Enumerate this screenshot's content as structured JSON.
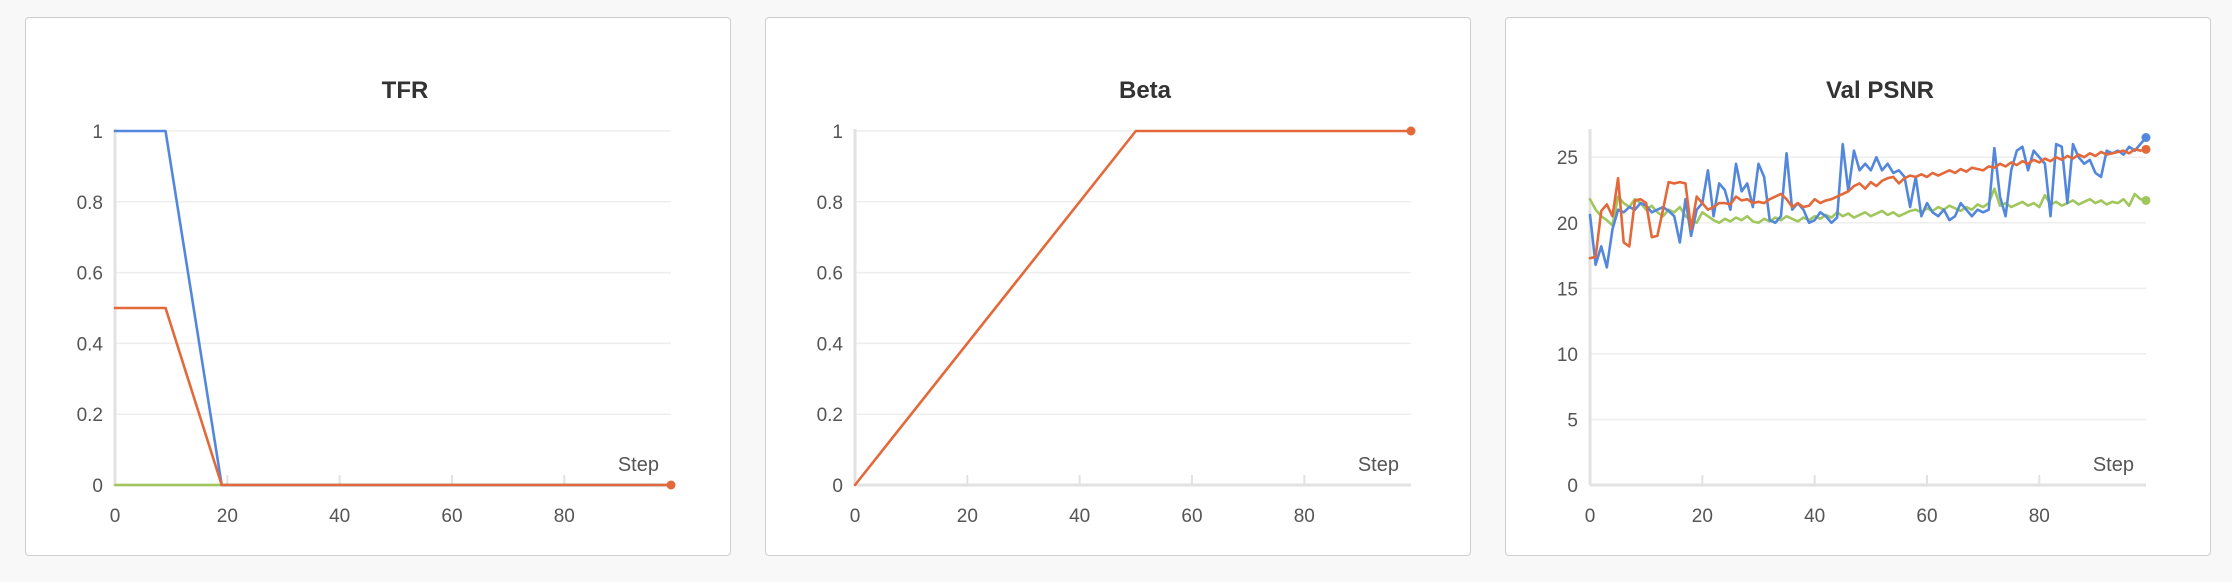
{
  "chart_data": [
    {
      "type": "line",
      "title": "TFR",
      "xlabel": "Step",
      "ylabel": "",
      "xlim": [
        0,
        99
      ],
      "ylim": [
        0,
        1
      ],
      "xticks": [
        "0",
        "20",
        "40",
        "60",
        "80"
      ],
      "yticks": [
        "0",
        "0.2",
        "0.4",
        "0.6",
        "0.8",
        "1"
      ],
      "grid": true,
      "series": [
        {
          "color": "#a0c75c",
          "x": [
            0,
            99
          ],
          "y": [
            0,
            0
          ]
        },
        {
          "color": "#5387dd",
          "x": [
            0,
            9,
            19,
            99
          ],
          "y": [
            1,
            1,
            0,
            0
          ]
        },
        {
          "color": "#e4693a",
          "x": [
            0,
            9,
            19,
            99
          ],
          "y": [
            0.5,
            0.5,
            0,
            0
          ],
          "end_marker": true
        }
      ]
    },
    {
      "type": "line",
      "title": "Beta",
      "xlabel": "Step",
      "ylabel": "",
      "xlim": [
        0,
        99
      ],
      "ylim": [
        0,
        1
      ],
      "xticks": [
        "0",
        "20",
        "40",
        "60",
        "80"
      ],
      "yticks": [
        "0",
        "0.2",
        "0.4",
        "0.6",
        "0.8",
        "1"
      ],
      "grid": true,
      "series": [
        {
          "color": "#e4693a",
          "x": [
            0,
            50,
            99
          ],
          "y": [
            0,
            1,
            1
          ],
          "end_marker": true
        }
      ]
    },
    {
      "type": "line",
      "title": "Val PSNR",
      "xlabel": "Step",
      "ylabel": "",
      "xlim": [
        0,
        99
      ],
      "ylim": [
        0,
        27
      ],
      "xticks": [
        "0",
        "20",
        "40",
        "60",
        "80"
      ],
      "yticks": [
        "0",
        "5",
        "10",
        "15",
        "20",
        "25"
      ],
      "grid": true,
      "series": [
        {
          "color": "#a0c75c",
          "end_marker": true,
          "y": [
            21.8,
            21,
            20.5,
            20.2,
            19.8,
            22,
            21.5,
            21.2,
            21.8,
            21.5,
            21,
            21.3,
            20.8,
            20.5,
            21,
            20.8,
            21.2,
            20.5,
            20.2,
            20,
            20.8,
            20.5,
            20.2,
            20,
            20.3,
            20.1,
            20.4,
            20.2,
            20.5,
            20.1,
            20,
            20.3,
            20.1,
            20.4,
            20.2,
            20.5,
            20.3,
            20.1,
            20.4,
            20.2,
            20.5,
            20.3,
            20.6,
            20.4,
            20.8,
            20.5,
            20.7,
            20.4,
            20.6,
            20.8,
            20.5,
            20.7,
            20.9,
            20.6,
            20.8,
            20.5,
            20.7,
            20.9,
            21,
            20.8,
            21.1,
            20.9,
            21.2,
            21,
            21.3,
            21.1,
            20.9,
            21.2,
            21,
            21.4,
            21.2,
            21.5,
            22.6,
            21.3,
            21.5,
            21.2,
            21.4,
            21.6,
            21.3,
            21.5,
            21.2,
            22.1,
            21.4,
            21.6,
            21.3,
            21.5,
            21.7,
            21.4,
            21.6,
            21.8,
            21.5,
            21.7,
            21.4,
            21.6,
            21.5,
            21.8,
            21.3,
            22.2,
            21.8,
            21.7
          ]
        },
        {
          "color": "#5387dd",
          "end_marker": true,
          "y": [
            20.6,
            16.8,
            18.2,
            16.6,
            19.5,
            21,
            20.8,
            21.2,
            21,
            21.5,
            21.3,
            20.8,
            21,
            21.2,
            20.9,
            20.5,
            18.5,
            21.8,
            19,
            21,
            21.5,
            24,
            20.5,
            23,
            22.5,
            21,
            24.5,
            22.4,
            23,
            21.2,
            24.5,
            23.5,
            20.2,
            20,
            20.5,
            25.3,
            21,
            21.5,
            21,
            20,
            20.2,
            20.8,
            20.5,
            20,
            20.4,
            26,
            22.4,
            25.5,
            24,
            24.5,
            24,
            25,
            24,
            24.5,
            23.8,
            24,
            23.5,
            21.2,
            23.5,
            20.5,
            21.5,
            20.8,
            20.5,
            21,
            20.2,
            20.5,
            21.5,
            21,
            20.5,
            21,
            20.8,
            21,
            25.7,
            22,
            20.5,
            24,
            25.5,
            25.8,
            24,
            25.5,
            25,
            24.5,
            20.5,
            26,
            25.8,
            21.5,
            26,
            25,
            24.5,
            24.8,
            23.8,
            23.5,
            25.5,
            25.3,
            25.5,
            25.2,
            25.8,
            25.5,
            26,
            26.5
          ]
        },
        {
          "color": "#e4693a",
          "end_marker": true,
          "y": [
            17.3,
            17.4,
            20.9,
            21.4,
            20.5,
            23.4,
            18.5,
            18.2,
            21.7,
            21.8,
            21.5,
            18.9,
            19,
            21,
            23.1,
            23,
            23.1,
            23,
            19.5,
            22,
            21.5,
            21,
            21.2,
            21.5,
            21.5,
            21.4,
            22,
            21.7,
            21.8,
            21.5,
            21.6,
            21.5,
            21.8,
            22,
            22.2,
            21.8,
            21.2,
            21.5,
            21.2,
            21.3,
            21.8,
            21.5,
            21.7,
            21.8,
            22,
            22.2,
            22.4,
            22.8,
            23,
            22.6,
            23.1,
            22.8,
            23.2,
            23.4,
            23.5,
            23,
            23.4,
            23.6,
            23.5,
            23.7,
            23.5,
            23.8,
            23.6,
            23.8,
            24,
            23.8,
            24.1,
            23.9,
            24.2,
            24.1,
            24,
            24.3,
            24.2,
            24.5,
            24.3,
            24.6,
            24.4,
            24.7,
            24.5,
            24.8,
            24.6,
            24.9,
            24.7,
            25,
            24.8,
            25.1,
            24.9,
            25.2,
            25,
            25.3,
            25.1,
            25.4,
            25.2,
            25.3,
            25.4,
            25.5,
            25.3,
            25.6,
            25.5,
            25.6
          ]
        }
      ]
    }
  ]
}
